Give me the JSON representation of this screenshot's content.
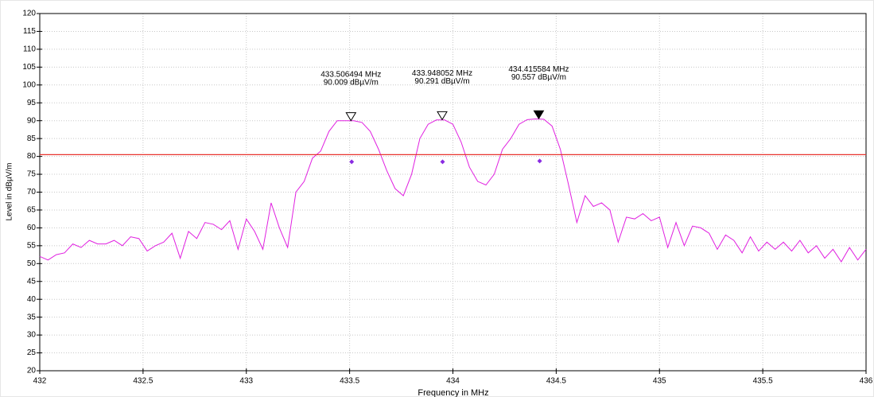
{
  "chart_data": {
    "type": "line",
    "x_label": "Frequency in MHz",
    "y_label": "Level in dBµV/m",
    "xlim": [
      432,
      436
    ],
    "ylim": [
      20,
      120
    ],
    "xticks": [
      432,
      432.5,
      433,
      433.5,
      434,
      434.5,
      435,
      435.5,
      436
    ],
    "yticks": [
      20,
      25,
      30,
      35,
      40,
      45,
      50,
      55,
      60,
      65,
      70,
      75,
      80,
      85,
      90,
      95,
      100,
      105,
      110,
      115,
      120
    ],
    "grid": true,
    "x": [
      432,
      432.04,
      432.08,
      432.12,
      432.16,
      432.2,
      432.24,
      432.28,
      432.32,
      432.36,
      432.4,
      432.44,
      432.48,
      432.52,
      432.56,
      432.6,
      432.64,
      432.68,
      432.72,
      432.76,
      432.8,
      432.84,
      432.88,
      432.92,
      432.96,
      433,
      433.04,
      433.08,
      433.12,
      433.16,
      433.2,
      433.24,
      433.28,
      433.32,
      433.36,
      433.4,
      433.44,
      433.48,
      433.52,
      433.56,
      433.6,
      433.64,
      433.68,
      433.72,
      433.76,
      433.8,
      433.84,
      433.88,
      433.92,
      433.96,
      434,
      434.04,
      434.08,
      434.12,
      434.16,
      434.2,
      434.24,
      434.28,
      434.32,
      434.36,
      434.4,
      434.44,
      434.48,
      434.52,
      434.56,
      434.6,
      434.64,
      434.68,
      434.72,
      434.76,
      434.8,
      434.84,
      434.88,
      434.92,
      434.96,
      435,
      435.04,
      435.08,
      435.12,
      435.16,
      435.2,
      435.24,
      435.28,
      435.32,
      435.36,
      435.4,
      435.44,
      435.48,
      435.52,
      435.56,
      435.6,
      435.64,
      435.68,
      435.72,
      435.76,
      435.8,
      435.84,
      435.88,
      435.92,
      435.96,
      436
    ],
    "series": [
      {
        "color": "#e020e0",
        "values": [
          52,
          51,
          52.5,
          53,
          55.5,
          54.5,
          56.5,
          55.5,
          55.5,
          56.5,
          55,
          57.5,
          57,
          53.5,
          55,
          56,
          58.5,
          51.5,
          59,
          57,
          61.5,
          61,
          59.5,
          62,
          54,
          62.5,
          59,
          54,
          67,
          60,
          54.5,
          70,
          73,
          79.5,
          81.5,
          87,
          90,
          90,
          90,
          89.5,
          87,
          82,
          76,
          71,
          69,
          75,
          85,
          89,
          90.2,
          90.2,
          89,
          84,
          77,
          73,
          72,
          75,
          82,
          85,
          89,
          90.3,
          90.5,
          90.4,
          88.5,
          82,
          72,
          61.5,
          69,
          66,
          67,
          65,
          56,
          63,
          62.5,
          64,
          62,
          63,
          54.5,
          61.5,
          55,
          60.5,
          60,
          58.5,
          54,
          58,
          56.5,
          53,
          57.5,
          53.5,
          56,
          54,
          56,
          53.5,
          56.5,
          53,
          55,
          51.5,
          54,
          50.5,
          54.5,
          51,
          54
        ]
      }
    ],
    "points": {
      "color": "#8a2be2",
      "x": [
        433.51,
        433.95,
        434.42
      ],
      "values": [
        78.5,
        78.5,
        78.7
      ]
    },
    "limit_line": {
      "value": 80.5,
      "color": "#e8332e"
    },
    "markers": [
      {
        "freq": 433.506494,
        "level": 90.009,
        "freq_label": "433.506494 MHz",
        "level_label": "90.009 dBµV/m",
        "active": false
      },
      {
        "freq": 433.948052,
        "level": 90.291,
        "freq_label": "433.948052 MHz",
        "level_label": "90.291 dBµV/m",
        "active": false
      },
      {
        "freq": 434.415584,
        "level": 90.557,
        "freq_label": "434.415584 MHz",
        "level_label": "90.557 dBµV/m",
        "active": true
      }
    ]
  }
}
